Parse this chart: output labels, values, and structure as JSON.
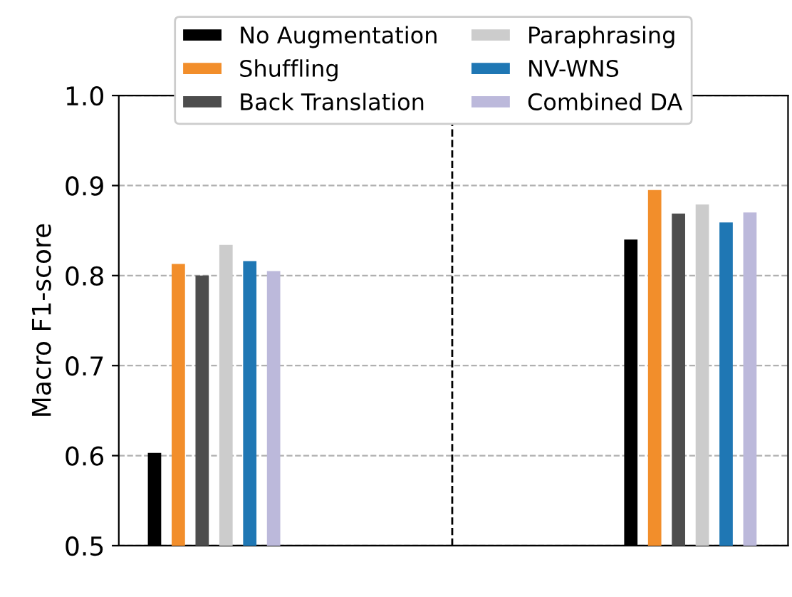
{
  "chart_data": {
    "type": "bar",
    "ylabel": "Macro F1-score",
    "categories": [
      null,
      null
    ],
    "series": [
      {
        "name": "No Augmentation",
        "color": "#000000",
        "values": [
          0.603,
          0.84
        ]
      },
      {
        "name": "Shuffling",
        "color": "#f28e2b",
        "values": [
          0.813,
          0.895
        ]
      },
      {
        "name": "Back Translation",
        "color": "#4d4d4d",
        "values": [
          0.8,
          0.869
        ]
      },
      {
        "name": "Paraphrasing",
        "color": "#cccccc",
        "values": [
          0.834,
          0.879
        ]
      },
      {
        "name": "NV-WNS",
        "color": "#1f77b4",
        "values": [
          0.816,
          0.859
        ]
      },
      {
        "name": "Combined DA",
        "color": "#bcb9db",
        "values": [
          0.805,
          0.87
        ]
      }
    ],
    "ylim": [
      0.5,
      1.0
    ],
    "yticks": [
      0.5,
      0.6,
      0.7,
      0.8,
      0.9,
      {
        "value": 1.0,
        "label": "1.0"
      }
    ],
    "grid": "y",
    "legend": "top"
  }
}
